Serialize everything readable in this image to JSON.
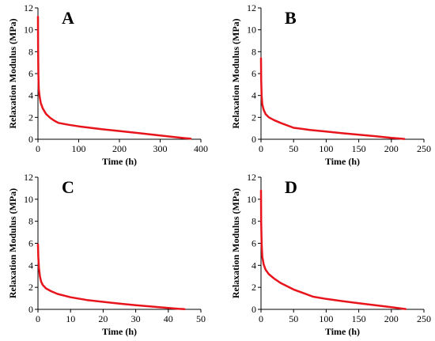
{
  "chart_data": [
    {
      "type": "line",
      "panel_label": "A",
      "xlabel": "Time (h)",
      "ylabel": "Relaxation Modulus (MPa)",
      "xlim": [
        0,
        400
      ],
      "ylim": [
        0,
        12
      ],
      "xticks": [
        0,
        100,
        200,
        300,
        400
      ],
      "yticks": [
        0,
        2,
        4,
        6,
        8,
        10,
        12
      ],
      "grid": false,
      "color": "#e8141c",
      "series": [
        {
          "x": [
            0,
            0.3,
            1,
            2,
            4,
            7,
            12,
            20,
            30,
            40,
            50,
            75,
            100,
            150,
            200,
            250,
            300,
            340,
            360,
            375
          ],
          "y": [
            11.2,
            8.0,
            6.0,
            4.6,
            3.9,
            3.3,
            2.8,
            2.3,
            1.95,
            1.7,
            1.5,
            1.32,
            1.18,
            0.95,
            0.75,
            0.55,
            0.35,
            0.18,
            0.1,
            0.05
          ]
        }
      ]
    },
    {
      "type": "line",
      "panel_label": "B",
      "xlabel": "Time (h)",
      "ylabel": "Relaxation Modulus (MPa)",
      "xlim": [
        0,
        250
      ],
      "ylim": [
        0,
        12
      ],
      "xticks": [
        0,
        50,
        100,
        150,
        200,
        250
      ],
      "yticks": [
        0,
        2,
        4,
        6,
        8,
        10,
        12
      ],
      "grid": false,
      "color": "#e8141c",
      "series": [
        {
          "x": [
            0,
            0.3,
            1,
            2,
            4,
            7,
            12,
            20,
            30,
            50,
            75,
            100,
            125,
            150,
            175,
            200,
            215,
            220
          ],
          "y": [
            7.4,
            5.5,
            4.0,
            3.2,
            2.7,
            2.3,
            2.0,
            1.75,
            1.5,
            1.05,
            0.85,
            0.7,
            0.55,
            0.42,
            0.28,
            0.12,
            0.05,
            0.03
          ]
        }
      ]
    },
    {
      "type": "line",
      "panel_label": "C",
      "xlabel": "Time (h)",
      "ylabel": "Relaxation Modulus (MPa)",
      "xlim": [
        0,
        50
      ],
      "ylim": [
        0,
        12
      ],
      "xticks": [
        0,
        10,
        20,
        30,
        40,
        50
      ],
      "yticks": [
        0,
        2,
        4,
        6,
        8,
        10,
        12
      ],
      "grid": false,
      "color": "#e8141c",
      "series": [
        {
          "x": [
            0,
            0.1,
            0.3,
            0.6,
            1,
            1.5,
            2.5,
            4,
            6,
            10,
            15,
            20,
            25,
            30,
            35,
            40,
            43,
            45
          ],
          "y": [
            5.9,
            4.8,
            3.8,
            3.0,
            2.5,
            2.2,
            1.9,
            1.65,
            1.4,
            1.1,
            0.85,
            0.68,
            0.52,
            0.38,
            0.25,
            0.12,
            0.05,
            0.02
          ]
        }
      ]
    },
    {
      "type": "line",
      "panel_label": "D",
      "xlabel": "Time (h)",
      "ylabel": "Relaxation Modulus (MPa)",
      "xlim": [
        0,
        250
      ],
      "ylim": [
        0,
        12
      ],
      "xticks": [
        0,
        50,
        100,
        150,
        200,
        250
      ],
      "yticks": [
        0,
        2,
        4,
        6,
        8,
        10,
        12
      ],
      "grid": false,
      "color": "#e8141c",
      "series": [
        {
          "x": [
            0,
            0.3,
            1,
            2,
            4,
            7,
            12,
            20,
            30,
            50,
            80,
            100,
            125,
            150,
            175,
            200,
            215,
            222
          ],
          "y": [
            10.8,
            8.0,
            6.0,
            4.8,
            4.1,
            3.6,
            3.2,
            2.8,
            2.4,
            1.8,
            1.15,
            0.95,
            0.75,
            0.55,
            0.38,
            0.2,
            0.08,
            0.03
          ]
        }
      ]
    }
  ]
}
